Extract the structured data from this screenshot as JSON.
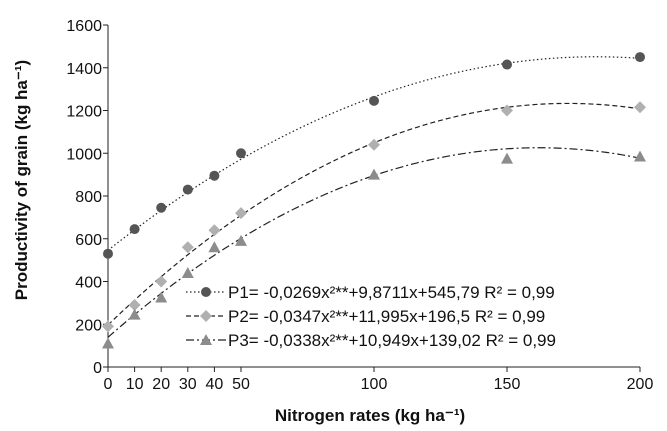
{
  "chart_data": {
    "type": "scatter",
    "xlabel": "Nitrogen rates (kg ha⁻¹)",
    "ylabel": "Productivity of grain (kg ha⁻¹)",
    "xlim": [
      0,
      200
    ],
    "ylim": [
      0,
      1600
    ],
    "x_ticks": [
      0,
      10,
      20,
      30,
      40,
      50,
      100,
      150,
      200
    ],
    "y_ticks": [
      0,
      200,
      400,
      600,
      800,
      1000,
      1200,
      1400,
      1600
    ],
    "grid": false,
    "legend_position": "bottom-right",
    "x": [
      0,
      10,
      20,
      30,
      40,
      50,
      100,
      150,
      200
    ],
    "series": [
      {
        "legend": "P1= -0,0269x²**+9,8711x+545,79 R² = 0,99",
        "marker": "circle",
        "line_style": "dotted",
        "color": "#555555",
        "values": [
          530,
          645,
          745,
          830,
          895,
          1000,
          1245,
          1415,
          1450
        ],
        "fit": {
          "a": -0.0269,
          "b": 9.8711,
          "c": 545.79
        }
      },
      {
        "legend": "P2= -0,0347x²**+11,995x+196,5 R² = 0,99",
        "marker": "diamond",
        "line_style": "dashed",
        "color": "#b0b0b0",
        "values": [
          190,
          290,
          400,
          560,
          640,
          720,
          1040,
          1200,
          1215
        ],
        "fit": {
          "a": -0.0347,
          "b": 11.995,
          "c": 196.5
        }
      },
      {
        "legend": "P3= -0,0338x²**+10,949x+139,02 R² = 0,99",
        "marker": "triangle",
        "line_style": "dashdot",
        "color": "#8c8c8c",
        "values": [
          110,
          245,
          325,
          440,
          560,
          590,
          900,
          975,
          985
        ],
        "fit": {
          "a": -0.0338,
          "b": 10.949,
          "c": 139.02
        }
      }
    ]
  }
}
